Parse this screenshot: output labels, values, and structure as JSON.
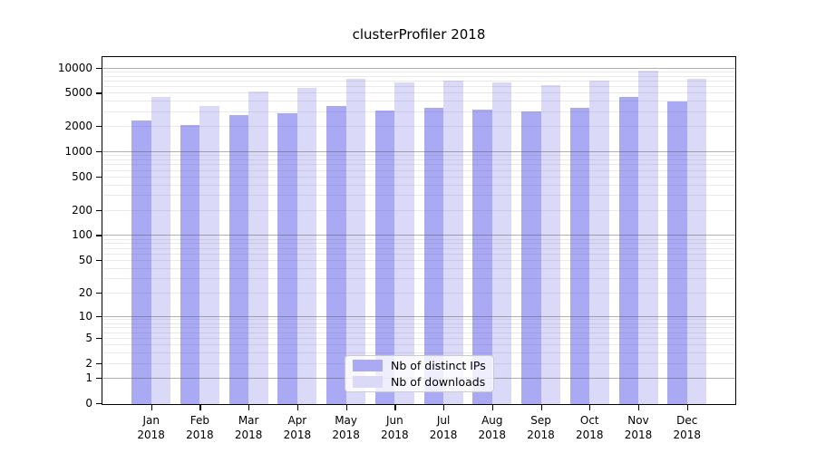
{
  "title": "clusterProfiler 2018",
  "colors": {
    "ips_bar": "#a9a9f4",
    "downloads_bar": "#dadaf8",
    "major_grid": "rgba(80,80,80,0.45)",
    "minor_grid": "rgba(80,80,80,0.12)",
    "spine": "#000000"
  },
  "legend": {
    "items": [
      {
        "label": "Nb of distinct IPs",
        "color_key": "ips_bar"
      },
      {
        "label": "Nb of downloads",
        "color_key": "downloads_bar"
      }
    ],
    "position": "lower center"
  },
  "y_axis": {
    "tick_values": [
      0,
      1,
      2,
      5,
      10,
      20,
      50,
      100,
      200,
      500,
      1000,
      2000,
      5000,
      10000
    ],
    "tick_labels": [
      "0",
      "1",
      "2",
      "5",
      "10",
      "20",
      "50",
      "100",
      "200",
      "500",
      "1000",
      "2000",
      "5000",
      "10000"
    ],
    "scale": "log1p",
    "major_gridlines": [
      1,
      10,
      100,
      1000,
      10000
    ]
  },
  "x_axis": {
    "months": [
      "Jan",
      "Feb",
      "Mar",
      "Apr",
      "May",
      "Jun",
      "Jul",
      "Aug",
      "Sep",
      "Oct",
      "Nov",
      "Dec"
    ],
    "year": "2018"
  },
  "chart_data": {
    "type": "bar",
    "title": "clusterProfiler 2018",
    "categories": [
      "Jan 2018",
      "Feb 2018",
      "Mar 2018",
      "Apr 2018",
      "May 2018",
      "Jun 2018",
      "Jul 2018",
      "Aug 2018",
      "Sep 2018",
      "Oct 2018",
      "Nov 2018",
      "Dec 2018"
    ],
    "series": [
      {
        "name": "Nb of distinct IPs",
        "values": [
          2360,
          2050,
          2700,
          2860,
          3510,
          3100,
          3290,
          3180,
          3020,
          3290,
          4500,
          3920
        ]
      },
      {
        "name": "Nb of downloads",
        "values": [
          4500,
          3510,
          5190,
          5690,
          7400,
          6650,
          6990,
          6700,
          6130,
          6940,
          9260,
          7400
        ]
      }
    ],
    "yscale": "log1p",
    "ylim": [
      0,
      13000
    ],
    "yticks": [
      0,
      1,
      2,
      5,
      10,
      20,
      50,
      100,
      200,
      500,
      1000,
      2000,
      5000,
      10000
    ],
    "grid": true,
    "legend_position": "lower center"
  }
}
